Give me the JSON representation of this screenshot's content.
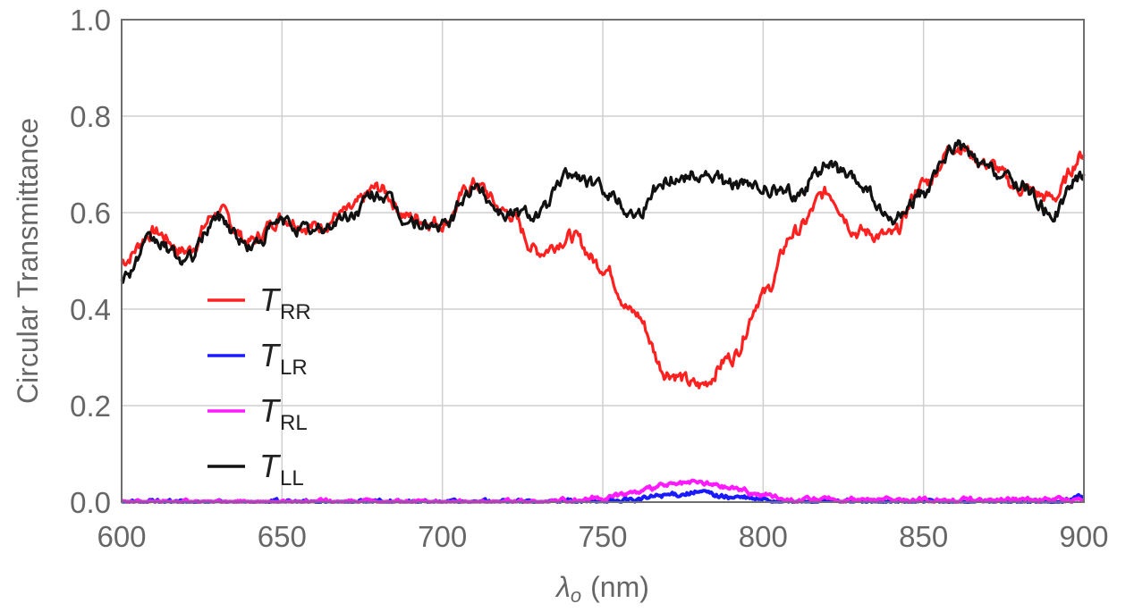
{
  "chart_data": {
    "type": "line",
    "xlabel_symbol": "λ",
    "xlabel_sub": "o",
    "xlabel_unit": "(nm)",
    "ylabel": "Circular Transmittance",
    "xlim": [
      600,
      900
    ],
    "ylim": [
      0,
      1.0
    ],
    "xticks": [
      "600",
      "650",
      "700",
      "750",
      "800",
      "850",
      "900"
    ],
    "yticks": [
      "0.0",
      "0.2",
      "0.4",
      "0.6",
      "0.8",
      "1.0"
    ],
    "grid": true,
    "legend_position": "left",
    "x": [
      600,
      610,
      620,
      630,
      640,
      650,
      660,
      670,
      680,
      690,
      700,
      710,
      720,
      730,
      740,
      750,
      760,
      770,
      780,
      790,
      800,
      810,
      820,
      830,
      840,
      850,
      860,
      870,
      880,
      890,
      900
    ],
    "series": [
      {
        "name": "T",
        "sub": "RR",
        "color": "#ff2020",
        "values": [
          0.5,
          0.56,
          0.52,
          0.6,
          0.54,
          0.59,
          0.57,
          0.6,
          0.65,
          0.59,
          0.58,
          0.66,
          0.6,
          0.52,
          0.55,
          0.49,
          0.39,
          0.27,
          0.24,
          0.3,
          0.43,
          0.56,
          0.64,
          0.56,
          0.55,
          0.66,
          0.74,
          0.7,
          0.65,
          0.63,
          0.72
        ]
      },
      {
        "name": "T",
        "sub": "LR",
        "color": "#1a1aff",
        "values": [
          0.0,
          0.0,
          0.0,
          0.0,
          0.0,
          0.0,
          0.0,
          0.0,
          0.0,
          0.0,
          0.0,
          0.0,
          0.0,
          0.0,
          0.0,
          0.0,
          0.005,
          0.015,
          0.02,
          0.01,
          0.005,
          0.0,
          0.0,
          0.0,
          0.0,
          0.0,
          0.0,
          0.0,
          0.0,
          0.0,
          0.01
        ]
      },
      {
        "name": "T",
        "sub": "RL",
        "color": "#ff1aff",
        "values": [
          0.0,
          0.0,
          0.0,
          0.0,
          0.0,
          0.0,
          0.0,
          0.0,
          0.0,
          0.0,
          0.0,
          0.0,
          0.0,
          0.0,
          0.005,
          0.01,
          0.02,
          0.035,
          0.04,
          0.03,
          0.015,
          0.005,
          0.005,
          0.005,
          0.005,
          0.005,
          0.005,
          0.005,
          0.005,
          0.005,
          0.005
        ]
      },
      {
        "name": "T",
        "sub": "LL",
        "color": "#111111",
        "values": [
          0.47,
          0.54,
          0.5,
          0.59,
          0.53,
          0.58,
          0.56,
          0.59,
          0.64,
          0.58,
          0.57,
          0.65,
          0.6,
          0.6,
          0.68,
          0.65,
          0.6,
          0.67,
          0.68,
          0.66,
          0.65,
          0.64,
          0.7,
          0.66,
          0.58,
          0.64,
          0.74,
          0.69,
          0.66,
          0.6,
          0.68
        ]
      }
    ]
  }
}
